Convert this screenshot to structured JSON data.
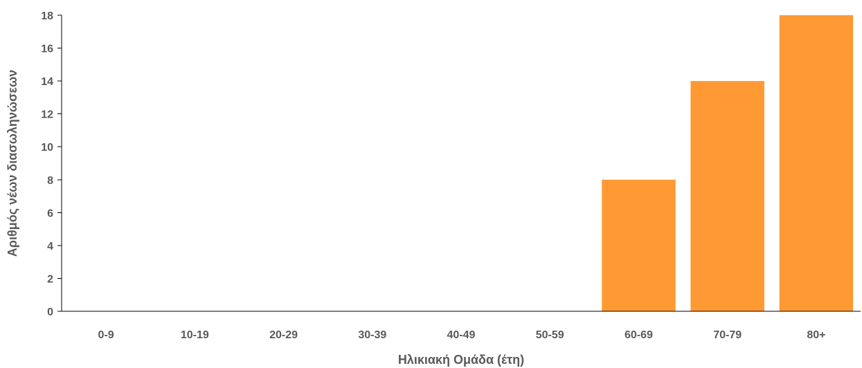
{
  "chart_data": {
    "type": "bar",
    "categories": [
      "0-9",
      "10-19",
      "20-29",
      "30-39",
      "40-49",
      "50-59",
      "60-69",
      "70-79",
      "80+"
    ],
    "values": [
      0,
      0,
      0,
      0,
      0,
      0,
      8,
      14,
      18
    ],
    "xlabel": "Ηλικιακή Ομάδα (έτη)",
    "ylabel": "Αριθμός νέων διασωληνώσεων",
    "ylim": [
      0,
      18
    ],
    "yticks": [
      0,
      2,
      4,
      6,
      8,
      10,
      12,
      14,
      16,
      18
    ],
    "grid": false,
    "bar_color": "#FF9933"
  }
}
